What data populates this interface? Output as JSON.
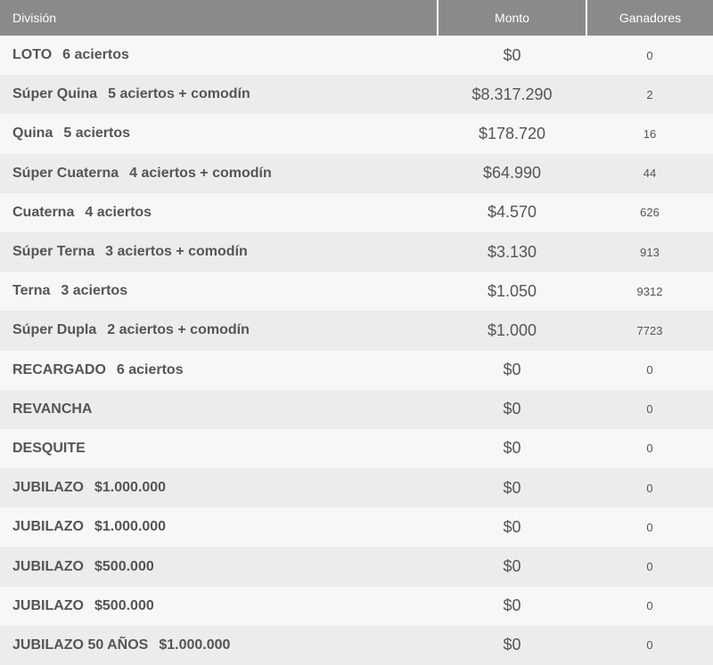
{
  "table": {
    "headers": {
      "division": "División",
      "monto": "Monto",
      "ganadores": "Ganadores"
    },
    "rows": [
      {
        "name": "LOTO",
        "detail": "6 aciertos",
        "monto": "$0",
        "ganadores": "0"
      },
      {
        "name": "Súper Quina",
        "detail": "5 aciertos + comodín",
        "monto": "$8.317.290",
        "ganadores": "2"
      },
      {
        "name": "Quina",
        "detail": "5 aciertos",
        "monto": "$178.720",
        "ganadores": "16"
      },
      {
        "name": "Súper Cuaterna",
        "detail": "4 aciertos + comodín",
        "monto": "$64.990",
        "ganadores": "44"
      },
      {
        "name": "Cuaterna",
        "detail": "4 aciertos",
        "monto": "$4.570",
        "ganadores": "626"
      },
      {
        "name": "Súper Terna",
        "detail": "3 aciertos + comodín",
        "monto": "$3.130",
        "ganadores": "913"
      },
      {
        "name": "Terna",
        "detail": "3 aciertos",
        "monto": "$1.050",
        "ganadores": "9312"
      },
      {
        "name": "Súper Dupla",
        "detail": "2 aciertos + comodín",
        "monto": "$1.000",
        "ganadores": "7723"
      },
      {
        "name": "RECARGADO",
        "detail": "6 aciertos",
        "monto": "$0",
        "ganadores": "0"
      },
      {
        "name": "REVANCHA",
        "detail": "",
        "monto": "$0",
        "ganadores": "0"
      },
      {
        "name": "DESQUITE",
        "detail": "",
        "monto": "$0",
        "ganadores": "0"
      },
      {
        "name": "JUBILAZO",
        "detail": "$1.000.000",
        "monto": "$0",
        "ganadores": "0"
      },
      {
        "name": "JUBILAZO",
        "detail": "$1.000.000",
        "monto": "$0",
        "ganadores": "0"
      },
      {
        "name": "JUBILAZO",
        "detail": "$500.000",
        "monto": "$0",
        "ganadores": "0"
      },
      {
        "name": "JUBILAZO",
        "detail": "$500.000",
        "monto": "$0",
        "ganadores": "0"
      },
      {
        "name": "JUBILAZO 50 AÑOS",
        "detail": "$1.000.000",
        "monto": "$0",
        "ganadores": "0"
      }
    ]
  }
}
